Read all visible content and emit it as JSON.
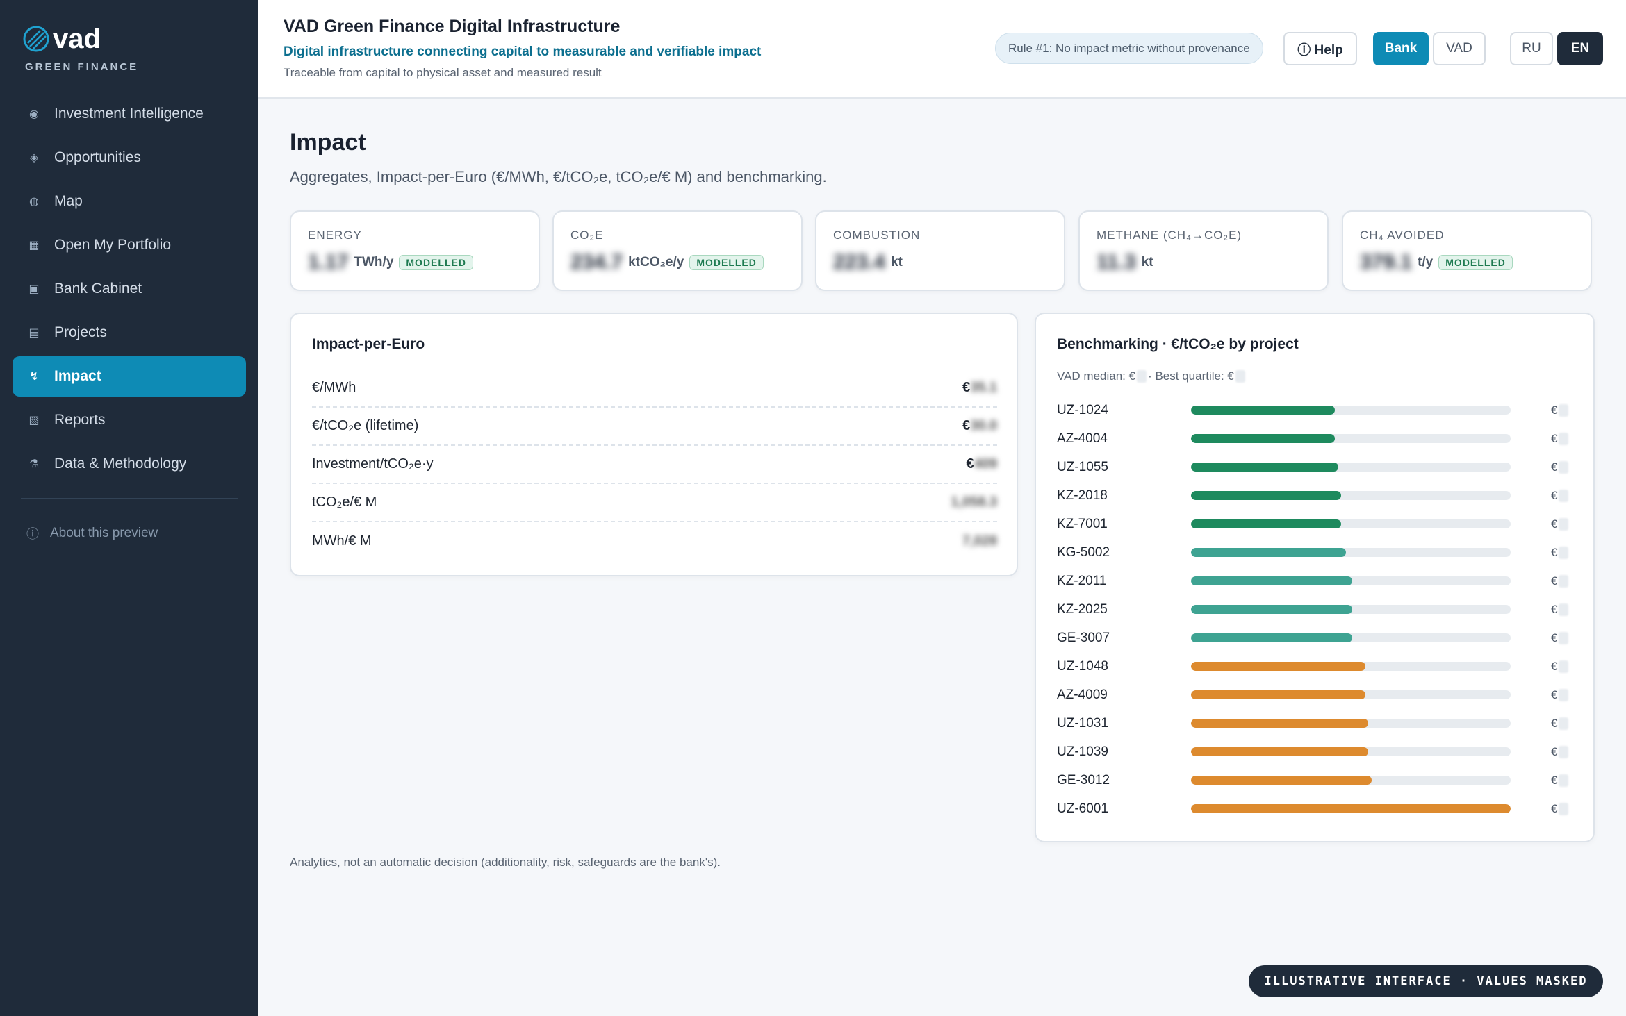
{
  "brand": {
    "name": "vad",
    "subtitle": "GREEN FINANCE"
  },
  "sidebar": {
    "items": [
      {
        "label": "Investment Intelligence",
        "icon": "target-icon",
        "glyph": "◉"
      },
      {
        "label": "Opportunities",
        "icon": "diamond-icon",
        "glyph": "◈"
      },
      {
        "label": "Map",
        "icon": "globe-icon",
        "glyph": "◍"
      },
      {
        "label": "Open My Portfolio",
        "icon": "grid-icon",
        "glyph": "▦"
      },
      {
        "label": "Bank Cabinet",
        "icon": "square-icon",
        "glyph": "▣"
      },
      {
        "label": "Projects",
        "icon": "list-icon",
        "glyph": "▤"
      },
      {
        "label": "Impact",
        "icon": "impact-icon",
        "glyph": "↯",
        "active": true
      },
      {
        "label": "Reports",
        "icon": "report-icon",
        "glyph": "▧"
      },
      {
        "label": "Data & Methodology",
        "icon": "flask-icon",
        "glyph": "⚗"
      }
    ],
    "about": {
      "label": "About this preview",
      "icon": "info-icon",
      "glyph": "ⓘ"
    }
  },
  "header": {
    "title": "VAD Green Finance Digital Infrastructure",
    "subtitle": "Digital infrastructure connecting capital to measurable and verifiable impact",
    "trace": "Traceable from capital to physical asset and measured result",
    "rule": "Rule #1: No impact metric without provenance",
    "help_label": "ⓘ Help",
    "bank_label": "Bank",
    "vad_label": "VAD",
    "ru_label": "RU",
    "en_label": "EN"
  },
  "main": {
    "title": "Impact",
    "description": "Aggregates, Impact-per-Euro (€/MWh, €/tCO₂e, tCO₂e/€  M) and benchmarking.",
    "kpis": [
      {
        "label": "ENERGY",
        "value": "1.17",
        "unit": "TWh/y",
        "badge": "MODELLED"
      },
      {
        "label": "CO₂E",
        "value": "234.7",
        "unit": "ktCO₂e/y",
        "badge": "MODELLED"
      },
      {
        "label": "COMBUSTION",
        "value": "223.4",
        "unit": "kt",
        "badge": ""
      },
      {
        "label": "METHANE (CH₄→CO₂E)",
        "value": "11.3",
        "unit": "kt",
        "badge": ""
      },
      {
        "label": "CH₄ AVOIDED",
        "value": "379.1",
        "unit": "t/y",
        "badge": "MODELLED"
      }
    ],
    "impact_per_euro": {
      "title": "Impact-per-Euro",
      "rows": [
        {
          "label": "€/MWh",
          "prefix": "€",
          "value": "35.1"
        },
        {
          "label": "€/tCO₂e (lifetime)",
          "prefix": "€",
          "value": "30.0"
        },
        {
          "label": "Investment/tCO₂e·y",
          "prefix": "€",
          "value": "409"
        },
        {
          "label": "tCO₂e/€  M",
          "prefix": "",
          "value": "1,058.3"
        },
        {
          "label": "MWh/€  M",
          "prefix": "",
          "value": "7,028"
        }
      ]
    },
    "benchmarking": {
      "title": "Benchmarking · €/tCO₂e by project",
      "median_label": "VAD median: €",
      "quartile_label": " · Best quartile: €",
      "value_prefix": "€",
      "colors": {
        "green": "#1e8a5e",
        "teal": "#3ea392",
        "orange": "#dd8a2e"
      },
      "projects": [
        {
          "id": "UZ-1024",
          "value": 0.45,
          "tier": "green"
        },
        {
          "id": "AZ-4004",
          "value": 0.45,
          "tier": "green"
        },
        {
          "id": "UZ-1055",
          "value": 0.46,
          "tier": "green"
        },
        {
          "id": "KZ-2018",
          "value": 0.47,
          "tier": "green"
        },
        {
          "id": "KZ-7001",
          "value": 0.47,
          "tier": "green"
        },
        {
          "id": "KG-5002",
          "value": 0.485,
          "tier": "teal"
        },
        {
          "id": "KZ-2011",
          "value": 0.505,
          "tier": "teal"
        },
        {
          "id": "KZ-2025",
          "value": 0.505,
          "tier": "teal"
        },
        {
          "id": "GE-3007",
          "value": 0.505,
          "tier": "teal"
        },
        {
          "id": "UZ-1048",
          "value": 0.545,
          "tier": "orange"
        },
        {
          "id": "AZ-4009",
          "value": 0.545,
          "tier": "orange"
        },
        {
          "id": "UZ-1031",
          "value": 0.555,
          "tier": "orange"
        },
        {
          "id": "UZ-1039",
          "value": 0.555,
          "tier": "orange"
        },
        {
          "id": "GE-3012",
          "value": 0.565,
          "tier": "orange"
        },
        {
          "id": "UZ-6001",
          "value": 1.0,
          "tier": "orange"
        }
      ]
    },
    "footnote": "Analytics, not an automatic decision (additionality, risk, safeguards are the bank's).",
    "watermark": "ILLUSTRATIVE INTERFACE · VALUES MASKED"
  }
}
